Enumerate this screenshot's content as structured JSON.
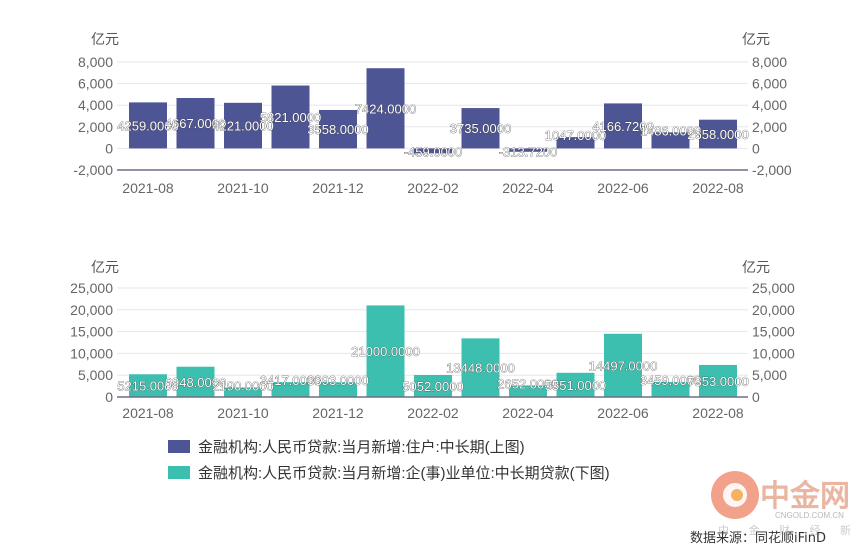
{
  "chart_data": [
    {
      "type": "bar",
      "unit_left": "亿元",
      "unit_right": "亿元",
      "categories": [
        "2021-08",
        "2021-09",
        "2021-10",
        "2021-11",
        "2021-12",
        "2022-01",
        "2022-02",
        "2022-03",
        "2022-04",
        "2022-05",
        "2022-06",
        "2022-07",
        "2022-08"
      ],
      "x_tick_labels": [
        "2021-08",
        "2021-10",
        "2021-12",
        "2022-02",
        "2022-04",
        "2022-06",
        "2022-08"
      ],
      "y_ticks": [
        8000,
        6000,
        4000,
        2000,
        0,
        -2000
      ],
      "y_tick_labels": [
        "8,000",
        "6,000",
        "4,000",
        "2,000",
        "0",
        "-2,000"
      ],
      "ylim": [
        -2000,
        8000
      ],
      "series": [
        {
          "name": "金融机构:人民币贷款:当月新增:住户:中长期(上图)",
          "color": "#4e5595",
          "values": [
            4259.0,
            4667.0,
            4221.0,
            5821.0,
            3558.0,
            7424.0,
            -459.0,
            3735.0,
            -313.72,
            1047.0,
            4166.72,
            1486.0,
            2658.0
          ],
          "labels": [
            "4259.0000",
            "4667.0000",
            "4221.0000",
            "5821.0000",
            "3558.0000",
            "7424.0000",
            "-459.0000",
            "3735.0000",
            "-313.7200",
            "1047.0000",
            "4166.7200",
            "1486.0000",
            "2658.0000"
          ]
        }
      ]
    },
    {
      "type": "bar",
      "unit_left": "亿元",
      "unit_right": "亿元",
      "categories": [
        "2021-08",
        "2021-09",
        "2021-10",
        "2021-11",
        "2021-12",
        "2022-01",
        "2022-02",
        "2022-03",
        "2022-04",
        "2022-05",
        "2022-06",
        "2022-07",
        "2022-08"
      ],
      "x_tick_labels": [
        "2021-08",
        "2021-10",
        "2021-12",
        "2022-02",
        "2022-04",
        "2022-06",
        "2022-08"
      ],
      "y_ticks": [
        25000,
        20000,
        15000,
        10000,
        5000,
        0
      ],
      "y_tick_labels": [
        "25,000",
        "20,000",
        "15,000",
        "10,000",
        "5,000",
        "0"
      ],
      "ylim": [
        0,
        25000
      ],
      "series": [
        {
          "name": "金融机构:人民币贷款:当月新增:企(事)业单位:中长期贷款(下图)",
          "color": "#3dbfb0",
          "values": [
            5215.0,
            6948.0,
            2190.0,
            3417.0,
            3393.0,
            21000.0,
            5052.0,
            13448.0,
            2652.0,
            5551.0,
            14497.0,
            3459.0,
            7353.0
          ],
          "labels": [
            "5215.0000",
            "6948.0000",
            "2190.0000",
            "3417.0000",
            "3393.0000",
            "21000.0000",
            "5052.0000",
            "13448.0000",
            "2652.0000",
            "5551.0000",
            "14497.0000",
            "3459.0000",
            "7353.0000"
          ]
        }
      ]
    }
  ],
  "legend": [
    {
      "label": "金融机构:人民币贷款:当月新增:住户:中长期(上图)",
      "color": "#4e5595"
    },
    {
      "label": "金融机构:人民币贷款:当月新增:企(事)业单位:中长期贷款(下图)",
      "color": "#3dbfb0"
    }
  ],
  "watermark": {
    "text": "中金网",
    "sub_en": "CNGOLD.COM.CN",
    "sub_cn": "中 金 财 经 新 媒 体",
    "logo_color": "#e8532a"
  },
  "source": "数据来源：同花顺iFinD"
}
